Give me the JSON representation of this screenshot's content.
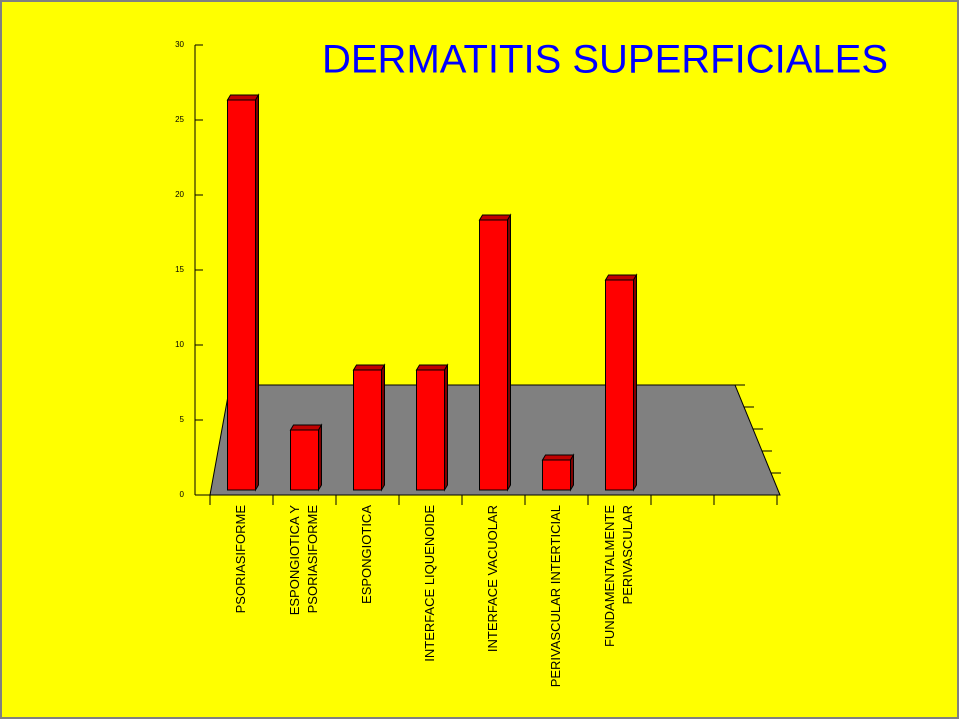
{
  "chart_data": {
    "type": "bar",
    "title": "DERMATITIS SUPERFICIALES",
    "categories": [
      [
        "PSORIASIFORME"
      ],
      [
        "ESPONGIOTICA Y",
        "PSORIASIFORME"
      ],
      [
        "ESPONGIOTICA"
      ],
      [
        "INTERFACE LIQUENOIDE"
      ],
      [
        "INTERFACE VACUOLAR"
      ],
      [
        "PERIVASCULAR INTERTICIAL"
      ],
      [
        "FUNDAMENTALMENTE",
        "PERIVASCULAR"
      ]
    ],
    "values": [
      26,
      4,
      8,
      8,
      18,
      2,
      14
    ],
    "color": "#ff0000",
    "ylim": [
      0,
      30
    ],
    "yticks": [
      0,
      5,
      10,
      15,
      20,
      25,
      30
    ],
    "grid": false
  }
}
